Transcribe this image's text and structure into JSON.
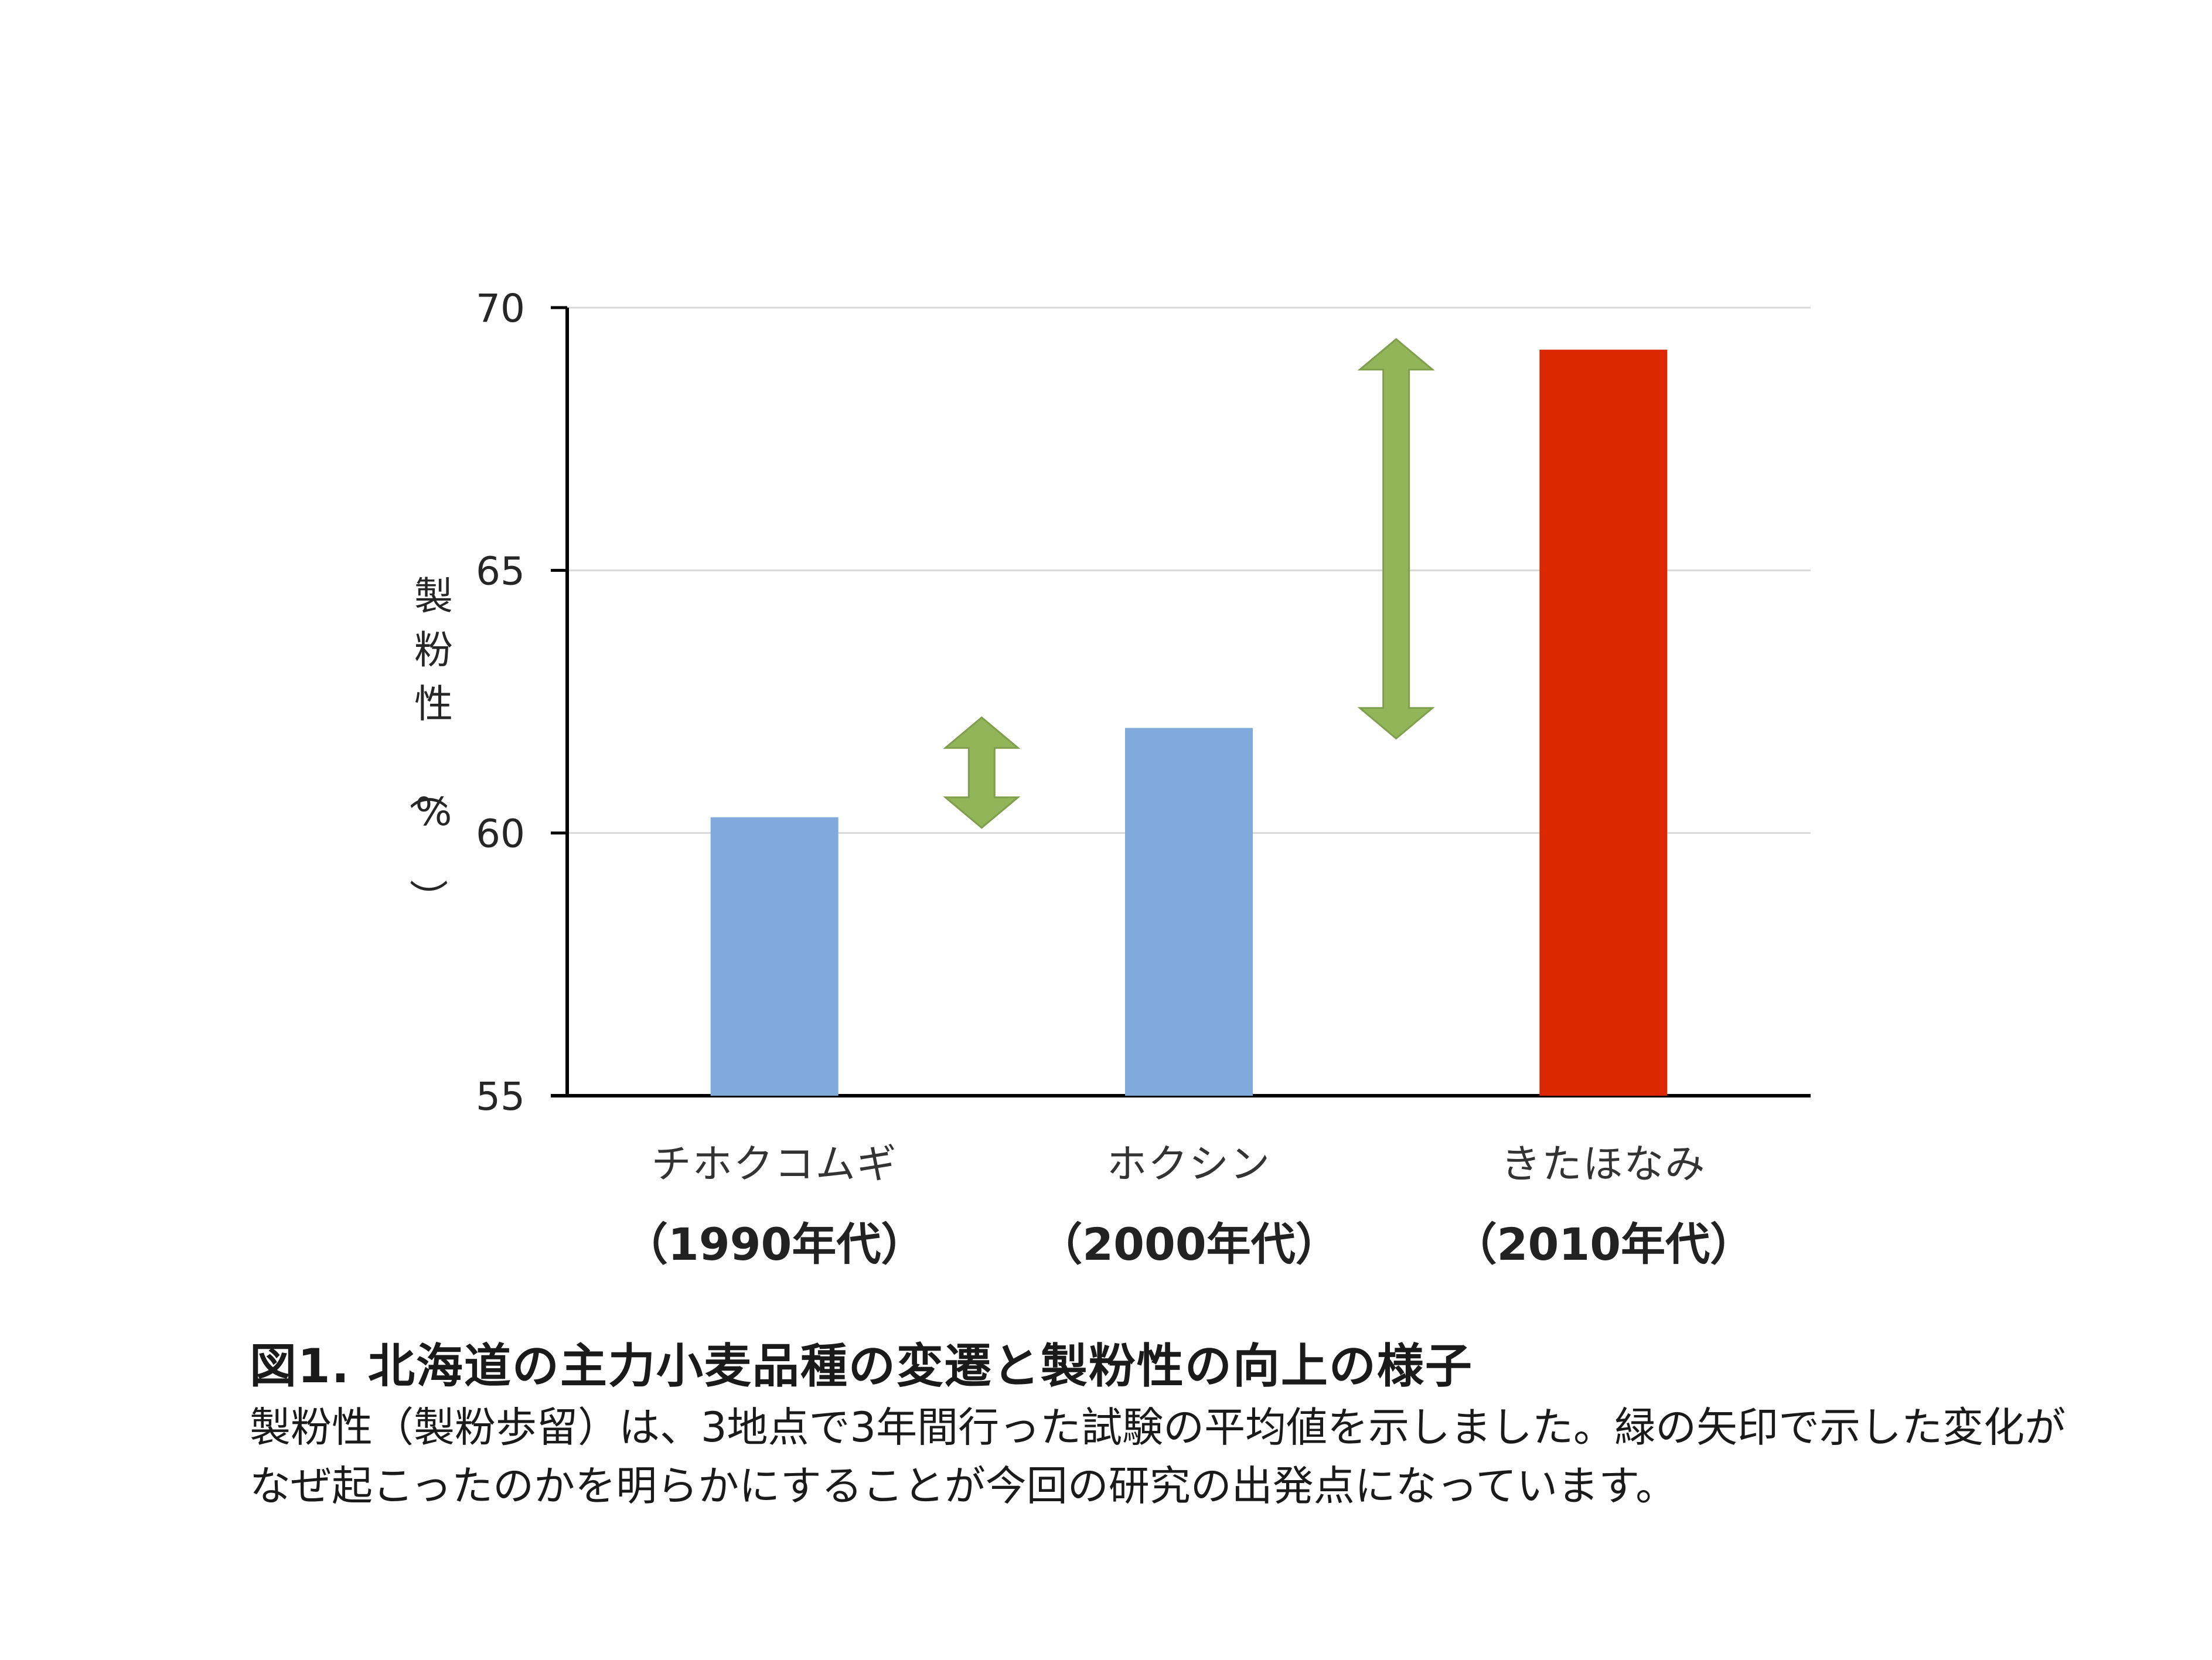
{
  "chart_data": {
    "type": "bar",
    "categories": [
      "チホクコムギ",
      "ホクシン",
      "きたほなみ"
    ],
    "category_eras": [
      "（1990年代）",
      "（2000年代）",
      "（2010年代）"
    ],
    "values": [
      60.3,
      62.0,
      69.2
    ],
    "bar_colors": [
      "#7faadb",
      "#7faadb",
      "#dc2800"
    ],
    "ylabel": "製粉性（%）",
    "ylim": [
      55,
      70
    ],
    "yticks": [
      55,
      60,
      65,
      70
    ],
    "grid": true,
    "arrow_color": "#92b55a",
    "arrows": [
      {
        "from": 60.3,
        "to": 62.0
      },
      {
        "from": 62.0,
        "to": 69.2
      }
    ]
  },
  "caption": {
    "title": "図1. 北海道の主力小麦品種の変遷と製粉性の向上の様子",
    "body": "製粉性（製粉歩留）は、3地点で3年間行った試験の平均値を示しました。緑の矢印で示した変化がなぜ起こったのかを明らかにすることが今回の研究の出発点になっています。"
  }
}
